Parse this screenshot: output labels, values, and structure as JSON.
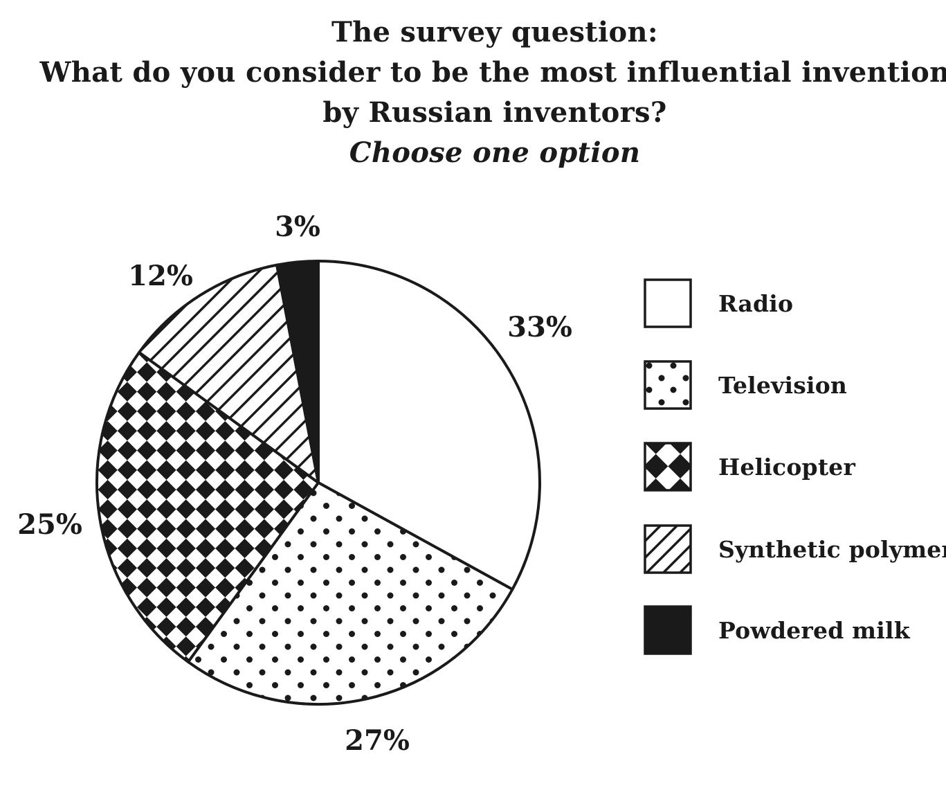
{
  "title": {
    "line1": "The survey question:",
    "line2": "What do you consider to be the most influential invention",
    "line3": "by Russian inventors?",
    "line4": "Choose one option"
  },
  "chart_data": {
    "type": "pie",
    "title": "The survey question: What do you consider to be the most influential invention by Russian inventors? Choose one option",
    "legend_position": "right",
    "start_angle": "12 o'clock",
    "direction": "clockwise",
    "slices": [
      {
        "name": "Radio",
        "value": 33,
        "label": "33%",
        "pattern": "plain",
        "color": "#ffffff"
      },
      {
        "name": "Television",
        "value": 27,
        "label": "27%",
        "pattern": "dots",
        "color": "#1a1a1a"
      },
      {
        "name": "Helicopter",
        "value": 25,
        "label": "25%",
        "pattern": "checker",
        "color": "#1a1a1a"
      },
      {
        "name": "Synthetic polymer",
        "value": 12,
        "label": "12%",
        "pattern": "diagonal-stripes",
        "color": "#1a1a1a"
      },
      {
        "name": "Powdered milk",
        "value": 3,
        "label": "3%",
        "pattern": "solid-black",
        "color": "#1a1a1a"
      }
    ]
  }
}
